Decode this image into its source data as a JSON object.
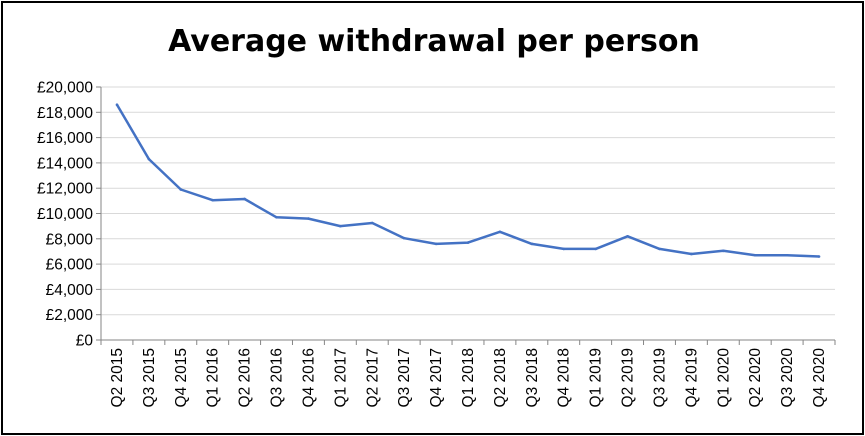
{
  "chart_data": {
    "type": "line",
    "title": "Average withdrawal per person",
    "xlabel": "",
    "ylabel": "",
    "ylim": [
      0,
      20000
    ],
    "yticks": [
      "£0",
      "£2,000",
      "£4,000",
      "£6,000",
      "£8,000",
      "£10,000",
      "£12,000",
      "£14,000",
      "£16,000",
      "£18,000",
      "£20,000"
    ],
    "ytick_values": [
      0,
      2000,
      4000,
      6000,
      8000,
      10000,
      12000,
      14000,
      16000,
      18000,
      20000
    ],
    "grid": true,
    "legend": "none",
    "categories": [
      "Q2 2015",
      "Q3 2015",
      "Q4 2015",
      "Q1 2016",
      "Q2 2016",
      "Q3 2016",
      "Q4 2016",
      "Q1 2017",
      "Q2 2017",
      "Q3 2017",
      "Q4 2017",
      "Q1 2018",
      "Q2 2018",
      "Q3 2018",
      "Q4 2018",
      "Q1 2019",
      "Q2 2019",
      "Q3 2019",
      "Q4 2019",
      "Q1 2020",
      "Q2 2020",
      "Q3 2020",
      "Q4 2020"
    ],
    "series": [
      {
        "values": [
          18600,
          14300,
          11900,
          11050,
          11150,
          9700,
          9600,
          9000,
          9250,
          8050,
          7600,
          7700,
          8550,
          7600,
          7200,
          7200,
          8200,
          7200,
          6800,
          7050,
          6700,
          6700,
          6600
        ],
        "color": "#4472c4"
      }
    ]
  }
}
